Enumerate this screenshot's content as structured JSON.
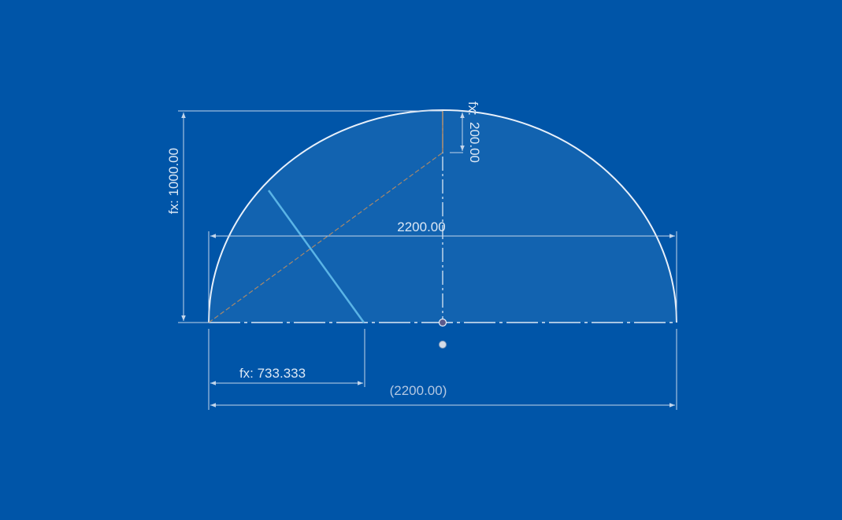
{
  "colors": {
    "background": "#0055a8",
    "profile_fill": "#1263b0",
    "outline": "#e8f0fa",
    "dimension": "#c3d5ea",
    "dimension_text": "#dce8f5",
    "dimension_text_driven": "#b4c8e2",
    "selected_line": "#5ab4e6",
    "construction": "#a8886a",
    "center_point": "#5a5a8c"
  },
  "dimensions": {
    "total_height": "fx: 1000.00",
    "top_offset_prefix": "fx:",
    "top_offset_value": "200.00",
    "width_driving": "2200.00",
    "left_offset": "fx: 733.333",
    "width_driven": "(2200.00)"
  }
}
